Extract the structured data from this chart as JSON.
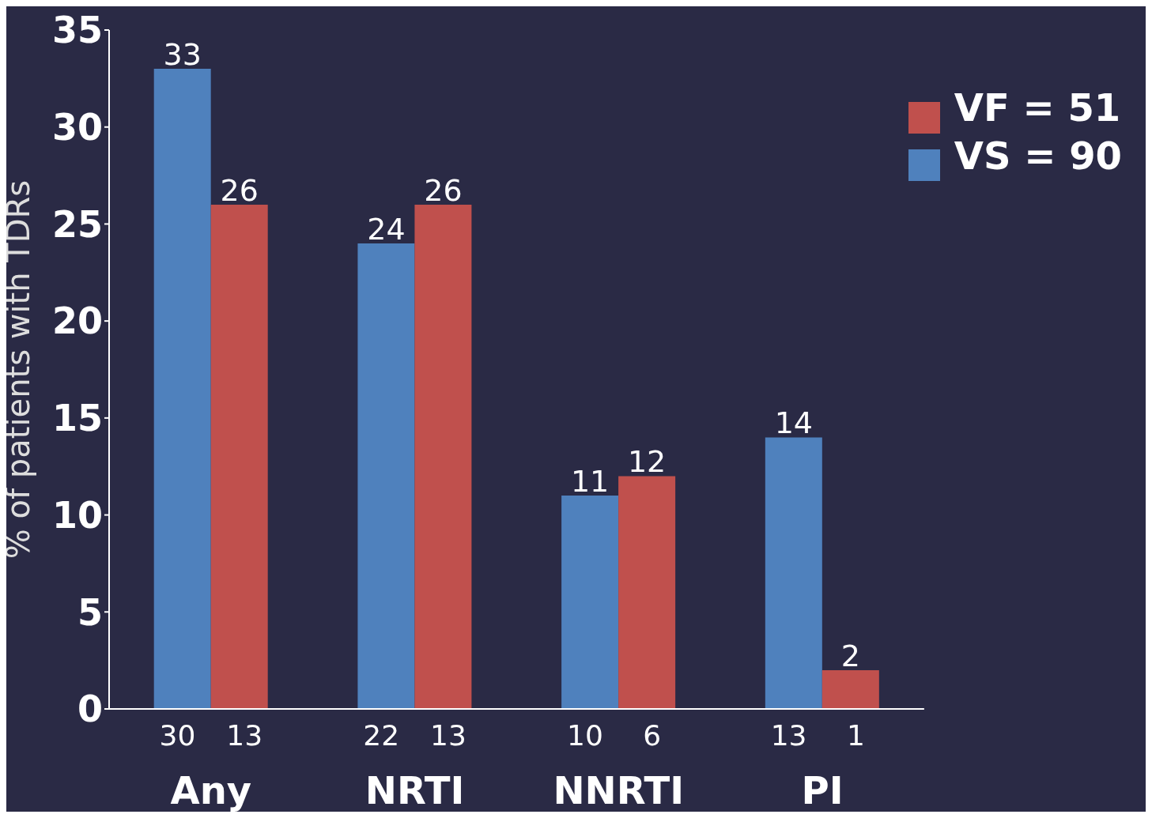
{
  "chart_data": {
    "type": "bar",
    "ylabel": "% of patients with TDRs",
    "categories": [
      "Any",
      "NRTI",
      "NNRTI",
      "PI"
    ],
    "series": [
      {
        "name": "VS = 90",
        "color": "#4f81bd",
        "values": [
          33,
          24,
          11,
          14
        ]
      },
      {
        "name": "VF = 51",
        "color": "#c0504d",
        "values": [
          26,
          26,
          12,
          2
        ]
      }
    ],
    "ylim": [
      0,
      35
    ],
    "yticks": [
      0,
      5,
      10,
      15,
      20,
      25,
      30,
      35
    ],
    "data_labels": true,
    "legend": "top right",
    "grid": false,
    "annotations": [
      "30",
      "13",
      "22",
      "13",
      "10",
      "6",
      "13",
      "1"
    ]
  }
}
